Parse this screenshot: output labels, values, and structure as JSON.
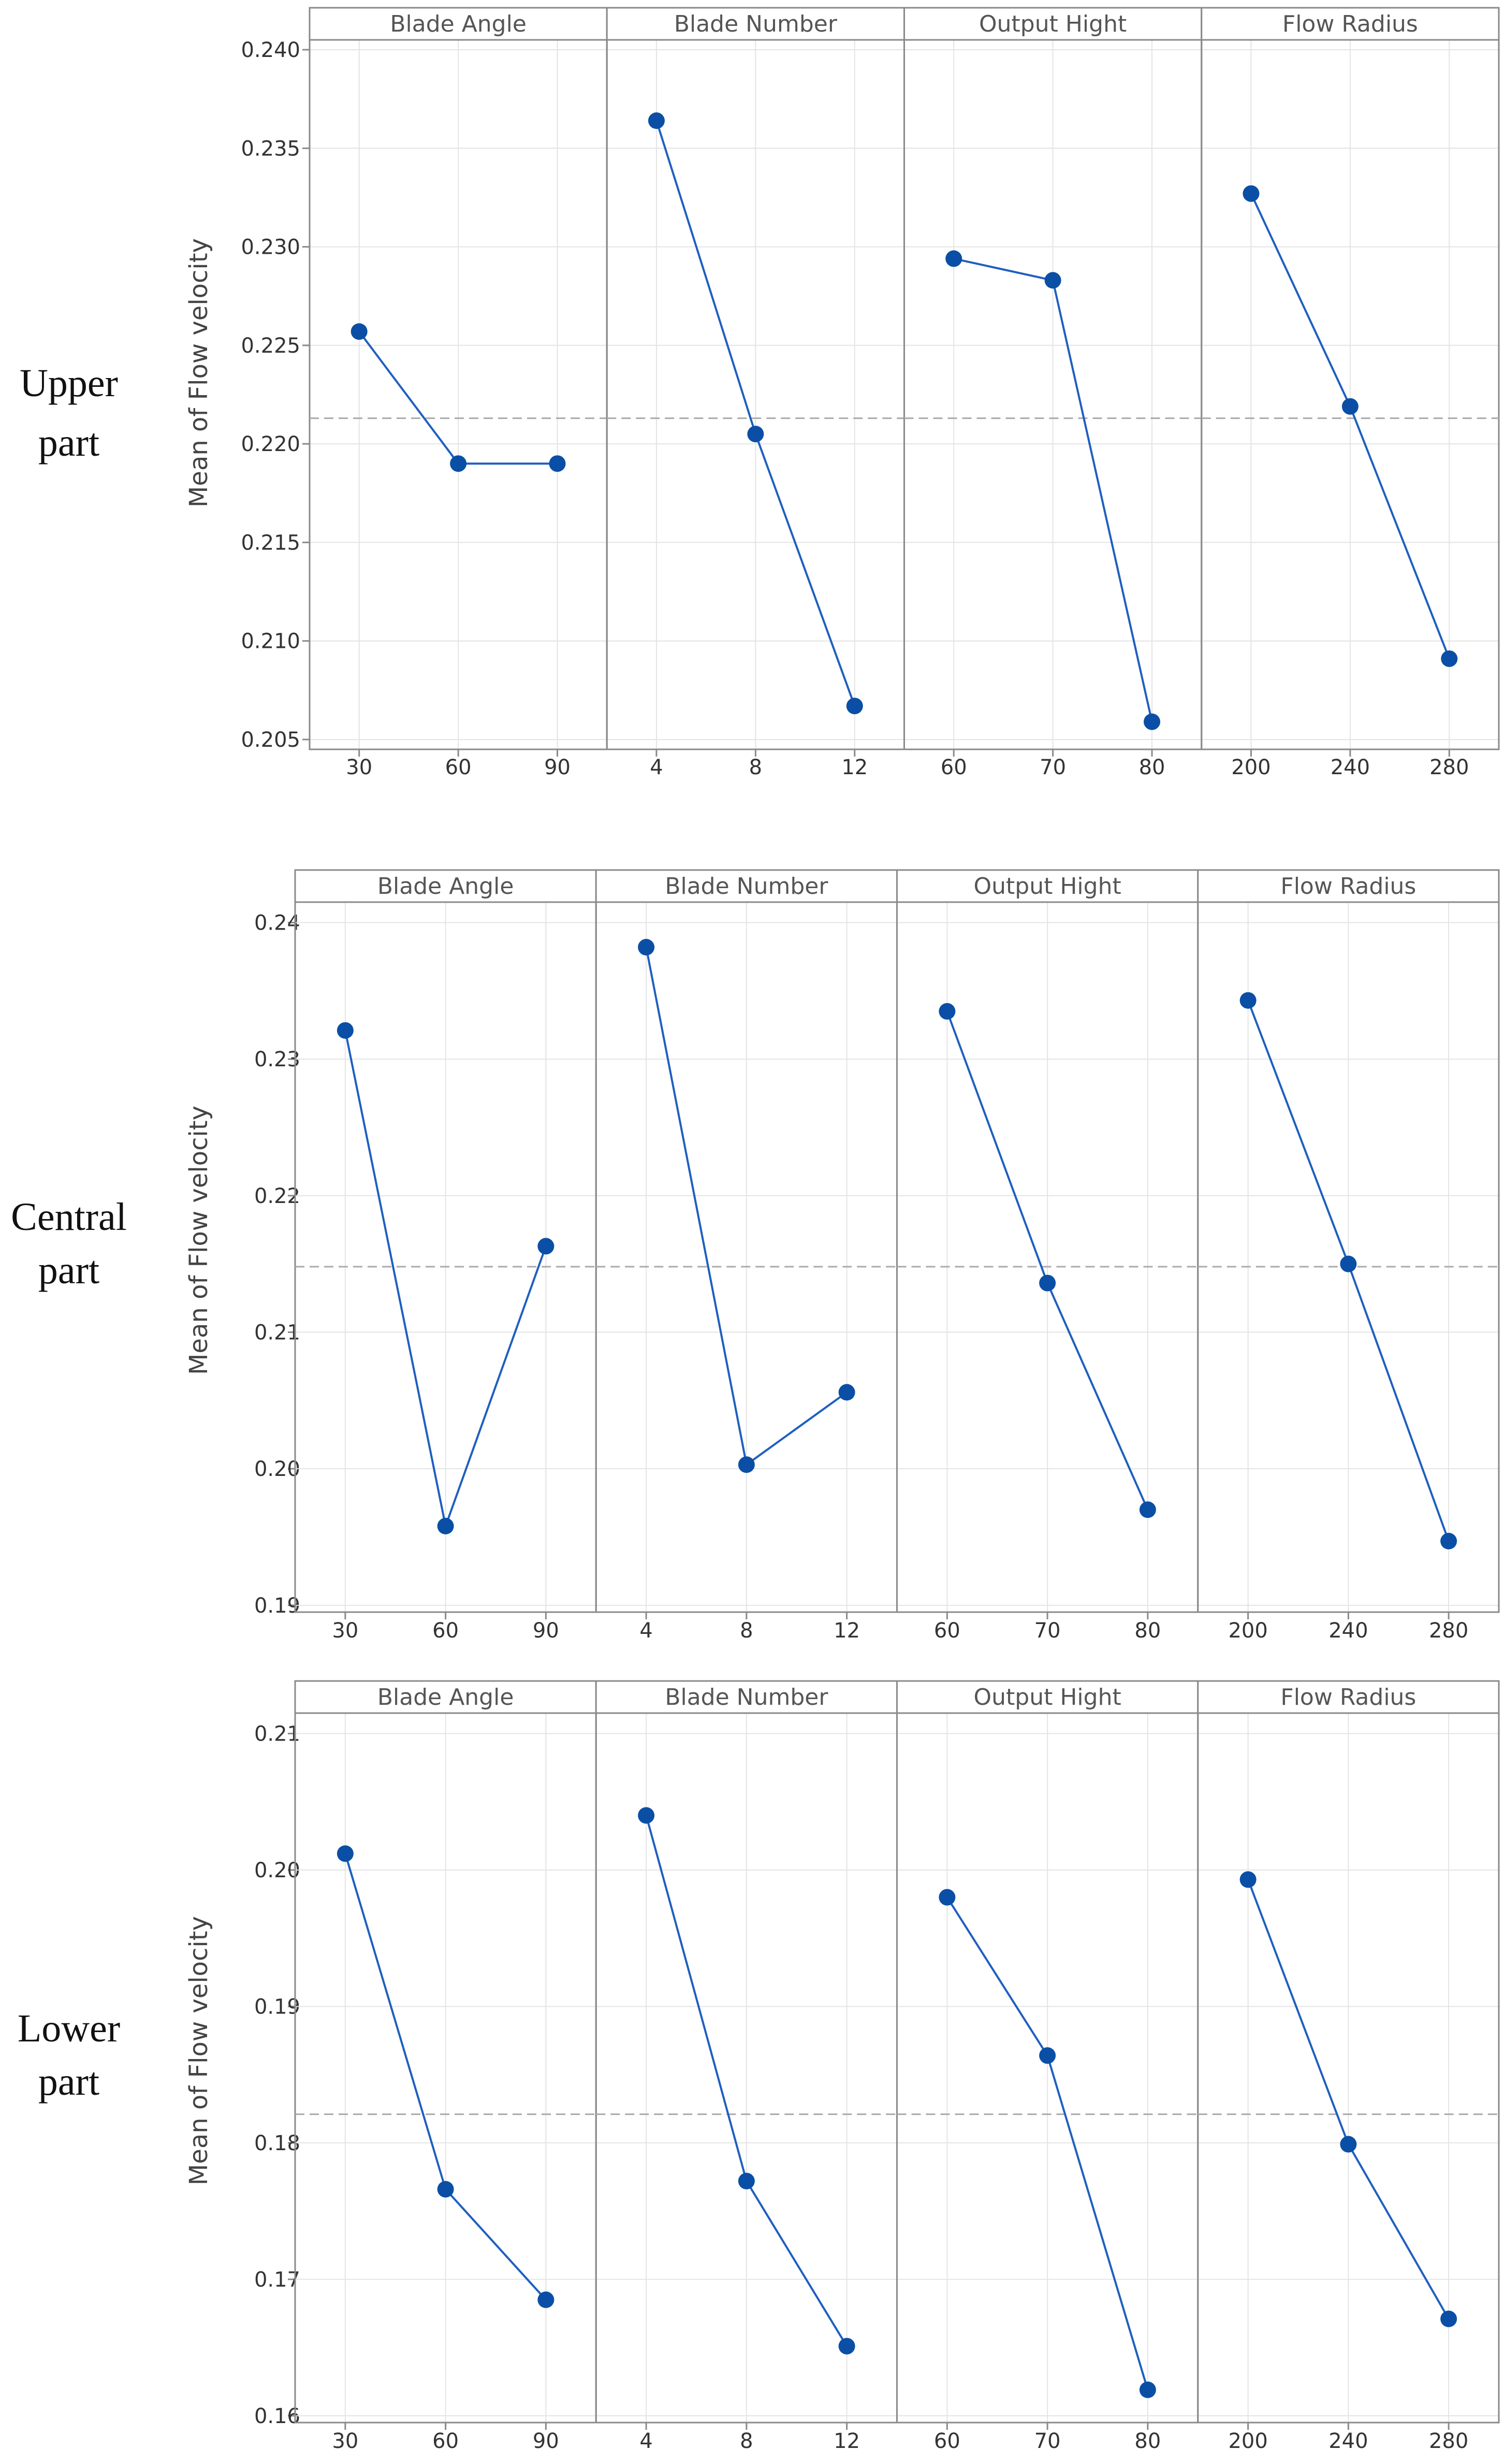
{
  "colors": {
    "series": "#1f5fbf",
    "marker": "#0a4fa5",
    "grid": "#e4e4e4",
    "frame": "#8a8a8a",
    "mean_line": "#aaaaaa"
  },
  "chart_data": [
    {
      "type": "line",
      "row_label": [
        "Upper",
        "part"
      ],
      "ylabel": "Mean of Flow velocity",
      "ylim": [
        0.2045,
        0.2405
      ],
      "yticks": [
        "0.205",
        "0.210",
        "0.215",
        "0.220",
        "0.225",
        "0.230",
        "0.235",
        "0.240"
      ],
      "grand_mean": 0.2213,
      "factors": [
        {
          "name": "Blade Angle",
          "levels": [
            "30",
            "60",
            "90"
          ],
          "values": [
            0.2257,
            0.219,
            0.219
          ]
        },
        {
          "name": "Blade Number",
          "levels": [
            "4",
            "8",
            "12"
          ],
          "values": [
            0.2364,
            0.2205,
            0.2067
          ]
        },
        {
          "name": "Output Hight",
          "levels": [
            "60",
            "70",
            "80"
          ],
          "values": [
            0.2294,
            0.2283,
            0.2059
          ]
        },
        {
          "name": "Flow Radius",
          "levels": [
            "200",
            "240",
            "280"
          ],
          "values": [
            0.2327,
            0.2219,
            0.2091
          ]
        }
      ]
    },
    {
      "type": "line",
      "row_label": [
        "Central",
        "part"
      ],
      "ylabel": "Mean of Flow velocity",
      "ylim": [
        0.1895,
        0.2415
      ],
      "yticks": [
        "0.19",
        "0.20",
        "0.21",
        "0.22",
        "0.23",
        "0.24"
      ],
      "grand_mean": 0.2148,
      "factors": [
        {
          "name": "Blade Angle",
          "levels": [
            "30",
            "60",
            "90"
          ],
          "values": [
            0.2321,
            0.1958,
            0.2163
          ]
        },
        {
          "name": "Blade Number",
          "levels": [
            "4",
            "8",
            "12"
          ],
          "values": [
            0.2382,
            0.2003,
            0.2056
          ]
        },
        {
          "name": "Output Hight",
          "levels": [
            "60",
            "70",
            "80"
          ],
          "values": [
            0.2335,
            0.2136,
            0.197
          ]
        },
        {
          "name": "Flow Radius",
          "levels": [
            "200",
            "240",
            "280"
          ],
          "values": [
            0.2343,
            0.215,
            0.1947
          ]
        }
      ]
    },
    {
      "type": "line",
      "row_label": [
        "Lower",
        "part"
      ],
      "ylabel": "Mean of Flow velocity",
      "ylim": [
        0.1595,
        0.2115
      ],
      "yticks": [
        "0.16",
        "0.17",
        "0.18",
        "0.19",
        "0.20",
        "0.21"
      ],
      "grand_mean": 0.1821,
      "factors": [
        {
          "name": "Blade Angle",
          "levels": [
            "30",
            "60",
            "90"
          ],
          "values": [
            0.2012,
            0.1766,
            0.1685
          ]
        },
        {
          "name": "Blade Number",
          "levels": [
            "4",
            "8",
            "12"
          ],
          "values": [
            0.204,
            0.1772,
            0.1651
          ]
        },
        {
          "name": "Output Hight",
          "levels": [
            "60",
            "70",
            "80"
          ],
          "values": [
            0.198,
            0.1864,
            0.1619
          ]
        },
        {
          "name": "Flow Radius",
          "levels": [
            "200",
            "240",
            "280"
          ],
          "values": [
            0.1993,
            0.1799,
            0.1671
          ]
        }
      ]
    }
  ]
}
